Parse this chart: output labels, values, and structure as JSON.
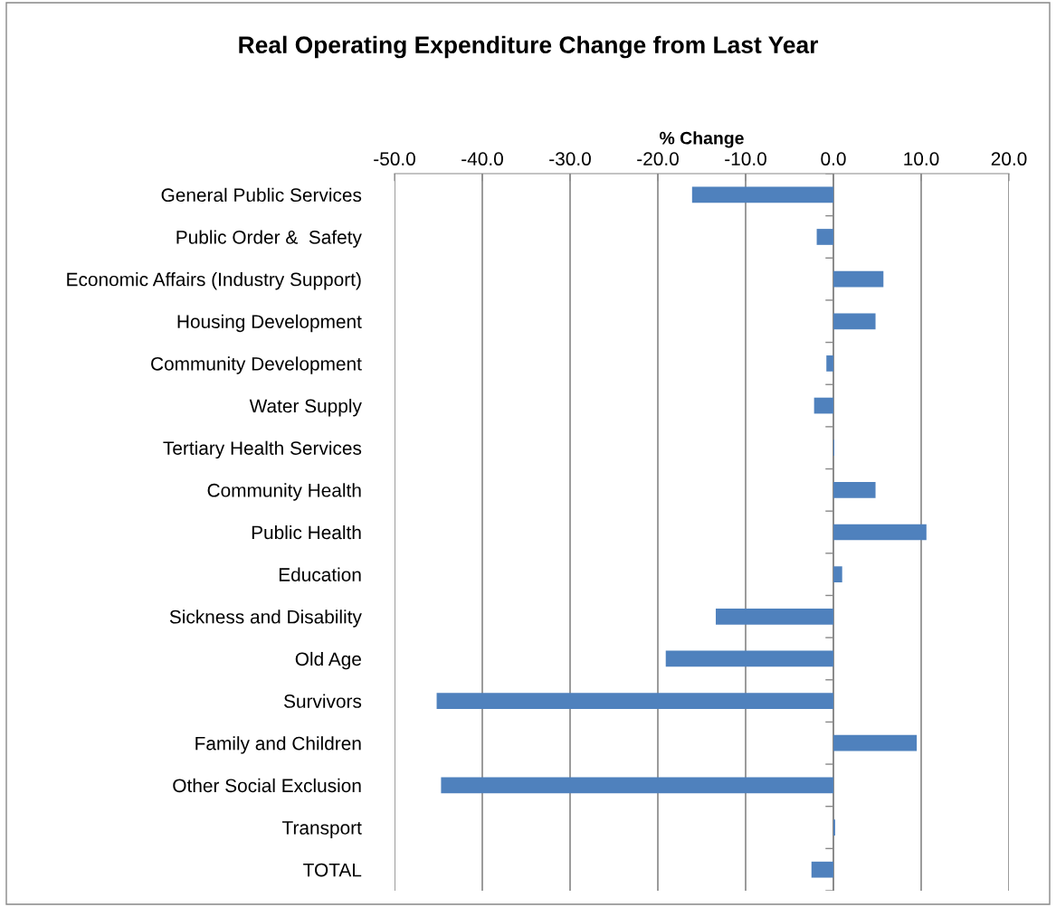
{
  "chart_data": {
    "type": "bar",
    "orientation": "horizontal",
    "title": "Real Operating Expenditure Change from Last Year",
    "xlabel": "% Change",
    "categories": [
      "General Public Services",
      "Public Order &  Safety",
      "Economic Affairs (Industry Support)",
      "Housing Development",
      "Community Development",
      "Water Supply",
      "Tertiary Health Services",
      "Community Health",
      "Public Health",
      "Education",
      "Sickness and Disability",
      "Old Age",
      "Survivors",
      "Family and Children",
      "Other Social Exclusion",
      "Transport",
      "TOTAL"
    ],
    "values": [
      -16.1,
      -1.9,
      5.7,
      4.8,
      -0.8,
      -2.2,
      0.1,
      4.8,
      10.6,
      1.0,
      -13.4,
      -19.1,
      -45.2,
      9.5,
      -44.7,
      0.2,
      -2.5
    ],
    "color": "#4f81bd",
    "xlim": [
      -50,
      20
    ],
    "xticks": [
      {
        "value": -50,
        "label": "-50.0"
      },
      {
        "value": -40,
        "label": "-40.0"
      },
      {
        "value": -30,
        "label": "-30.0"
      },
      {
        "value": -20,
        "label": "-20.0"
      },
      {
        "value": -10,
        "label": "-10.0"
      },
      {
        "value": 0,
        "label": "0.0"
      },
      {
        "value": 10,
        "label": "10.0"
      },
      {
        "value": 20,
        "label": "20.0"
      }
    ],
    "grid": "x",
    "legend": false
  }
}
